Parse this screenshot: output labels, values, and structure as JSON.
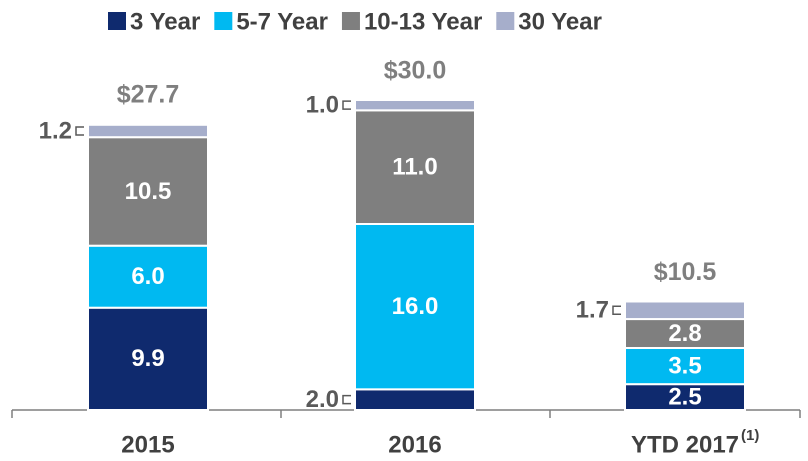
{
  "chart_data": {
    "type": "stacked_bar",
    "categories": [
      "2015",
      "2016",
      "YTD 2017"
    ],
    "annotations": [
      {
        "text": "(1)"
      }
    ],
    "series": [
      {
        "name": "3 Year",
        "color": "#0f2a6e",
        "values": [
          9.9,
          2.0,
          2.5
        ],
        "value_labels": [
          "9.9",
          "2.0",
          "2.5"
        ]
      },
      {
        "name": "5-7 Year",
        "color": "#00b9f1",
        "values": [
          6.0,
          16.0,
          3.5
        ],
        "value_labels": [
          "6.0",
          "16.0",
          "3.5"
        ]
      },
      {
        "name": "10-13 Year",
        "color": "#7f7f7f",
        "values": [
          10.5,
          11.0,
          2.8
        ],
        "value_labels": [
          "10.5",
          "11.0",
          "2.8"
        ]
      },
      {
        "name": "30 Year",
        "color": "#a6aecb",
        "values": [
          1.2,
          1.0,
          1.7
        ],
        "value_labels": [
          "1.2",
          "1.0",
          "1.7"
        ]
      }
    ],
    "totals": [
      27.7,
      30.0,
      10.5
    ],
    "total_labels": [
      "$27.7",
      "$30.0",
      "$10.5"
    ],
    "ylim": [
      0,
      30
    ],
    "legend": "top"
  }
}
